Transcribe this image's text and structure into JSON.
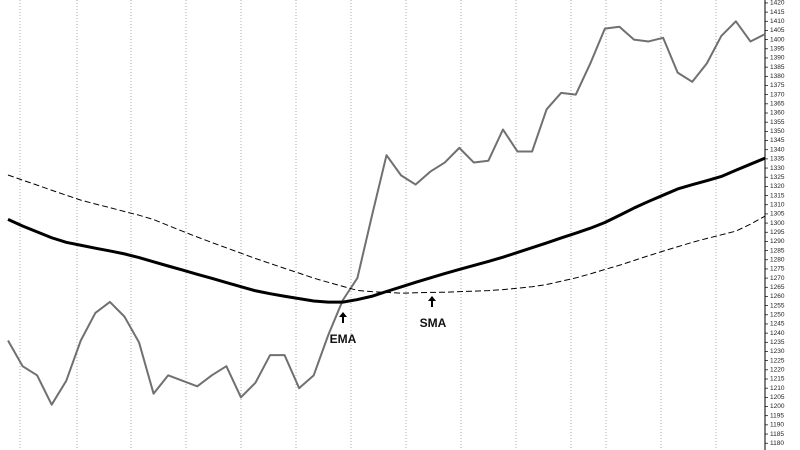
{
  "chart_data": {
    "type": "line",
    "categories": [
      null,
      null,
      null,
      null,
      null,
      null,
      null,
      null,
      null,
      null,
      null,
      null,
      null,
      null,
      null,
      null,
      null,
      null,
      null,
      null,
      null,
      null,
      null,
      null,
      null,
      null,
      null,
      null,
      null,
      null,
      null,
      null,
      null,
      null,
      null,
      null,
      null,
      null,
      null,
      null,
      null,
      null,
      null,
      null,
      null,
      null,
      null,
      null,
      null,
      null,
      null,
      null,
      null
    ],
    "series": [
      {
        "color": "#707070",
        "style": "solid",
        "width": 2,
        "values": [
          1236,
          1222,
          1217,
          1201,
          1214,
          1236,
          1251,
          1257,
          1249,
          1235,
          1207,
          1217,
          1214,
          1211,
          1217,
          1222,
          1205,
          1213,
          1228,
          1228,
          1210,
          1217,
          1239,
          1258,
          1270,
          1304,
          1337,
          1326,
          1321,
          1328,
          1333,
          1341,
          1333,
          1334,
          1351,
          1339,
          1339,
          1362,
          1371,
          1370,
          1387,
          1406,
          1407,
          1400,
          1399,
          1401,
          1382,
          1377,
          1387,
          1402,
          1410,
          1399,
          1403
        ]
      },
      {
        "color": "#000000",
        "style": "solid",
        "width": 3,
        "values": [
          1302,
          1298.4,
          1295.2,
          1292,
          1289.5,
          1287.9,
          1286.3,
          1284.8,
          1283.2,
          1281.2,
          1278.9,
          1276.6,
          1274.4,
          1272.1,
          1269.9,
          1267.6,
          1265.3,
          1263.1,
          1261.5,
          1260.1,
          1258.8,
          1257.5,
          1256.9,
          1256.9,
          1258.3,
          1260.1,
          1262.7,
          1265.2,
          1267.7,
          1270.1,
          1272.5,
          1274.7,
          1276.9,
          1279.1,
          1281.4,
          1284,
          1286.6,
          1289.2,
          1291.9,
          1294.5,
          1297.2,
          1300.3,
          1304.2,
          1308.2,
          1311.8,
          1315.2,
          1318.6,
          1320.9,
          1323.1,
          1325.4,
          1328.8,
          1332.1,
          1335.4
        ]
      },
      {
        "color": "#000000",
        "style": "dashed",
        "width": 1,
        "values": [
          1326.2,
          1323.4,
          1320.7,
          1317.9,
          1315.2,
          1312.5,
          1310.4,
          1308.4,
          1306.3,
          1304.3,
          1301.9,
          1298.7,
          1295.5,
          1292.4,
          1289.4,
          1286.5,
          1283.6,
          1280.7,
          1278,
          1275.3,
          1272.7,
          1270,
          1267.7,
          1265.5,
          1263.3,
          1262.6,
          1262.2,
          1261.8,
          1262,
          1262.2,
          1262.3,
          1262.6,
          1262.9,
          1263.2,
          1263.7,
          1264.5,
          1265.3,
          1266.5,
          1268.3,
          1270.1,
          1272.3,
          1274.7,
          1277,
          1279.6,
          1282.2,
          1284.7,
          1287.1,
          1289.5,
          1291.6,
          1293.6,
          1295.6,
          1299.4,
          1303.8
        ]
      }
    ],
    "annotations": [
      "EMA",
      "SMA"
    ],
    "ylim": [
      1176.3,
      1421.6
    ],
    "yticks": [
      1180,
      1185,
      1190,
      1195,
      1200,
      1205,
      1210,
      1215,
      1220,
      1225,
      1230,
      1235,
      1240,
      1245,
      1250,
      1255,
      1260,
      1265,
      1270,
      1275,
      1280,
      1285,
      1290,
      1295,
      1300,
      1305,
      1310,
      1315,
      1320,
      1325,
      1330,
      1335,
      1340,
      1345,
      1350,
      1355,
      1360,
      1365,
      1370,
      1375,
      1380,
      1385,
      1390,
      1395,
      1400,
      1405,
      1410,
      1415,
      1420
    ],
    "y_axis_side": "right"
  }
}
